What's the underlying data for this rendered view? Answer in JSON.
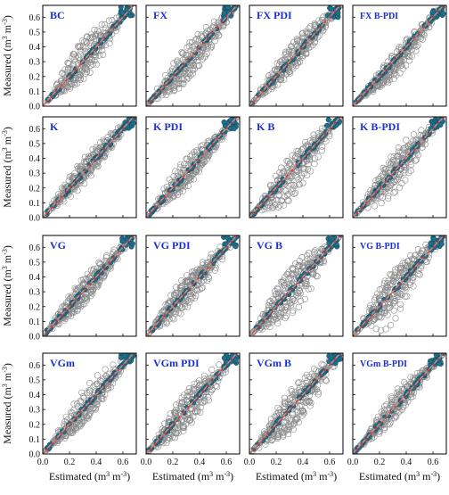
{
  "colors": {
    "open_marker": "#8a8a8a",
    "filled_marker": "#1f6f8b",
    "one_to_one_line": "#e8352b",
    "fit_line": "#a0a0a0",
    "panel_label": "#1a2fd6",
    "axis": "#000000"
  },
  "axis_text": {
    "ylabel_main": "Measured",
    "ylabel_unit_a": "(m",
    "ylabel_unit_b": " m",
    "ylabel_unit_c": ")",
    "ylabel_sup": "3",
    "ylabel_sup2": "-3",
    "xlabel_main": "Estimated",
    "xlabel_unit_a": "(m",
    "xlabel_unit_b": " m",
    "xlabel_unit_c": ")",
    "xlabel_sup": "3",
    "xlabel_sup2": "-3"
  },
  "chart_data": {
    "type": "scatter",
    "x_ticks": [
      "0.0",
      "0.2",
      "0.4",
      "0.6"
    ],
    "y_ticks": [
      "0.0",
      "0.1",
      "0.2",
      "0.3",
      "0.4",
      "0.5",
      "0.6"
    ],
    "xlim": [
      0,
      0.7
    ],
    "ylim": [
      0,
      0.68
    ],
    "grid": false,
    "panels": [
      {
        "label": "BC",
        "spread": 0.11,
        "bias": 0.02
      },
      {
        "label": "FX",
        "spread": 0.1,
        "bias": -0.03
      },
      {
        "label": "FX PDI",
        "spread": 0.09,
        "bias": 0.0
      },
      {
        "label": "FX B-PDI",
        "spread": 0.1,
        "bias": -0.04
      },
      {
        "label": "K",
        "spread": 0.08,
        "bias": 0.0
      },
      {
        "label": "K PDI",
        "spread": 0.09,
        "bias": -0.01
      },
      {
        "label": "K B",
        "spread": 0.13,
        "bias": -0.05
      },
      {
        "label": "K B-PDI",
        "spread": 0.13,
        "bias": -0.03
      },
      {
        "label": "VG",
        "spread": 0.1,
        "bias": 0.01
      },
      {
        "label": "VG PDI",
        "spread": 0.11,
        "bias": -0.02
      },
      {
        "label": "VG B",
        "spread": 0.16,
        "bias": 0.0
      },
      {
        "label": "VG B-PDI",
        "spread": 0.15,
        "bias": -0.04
      },
      {
        "label": "VGm",
        "spread": 0.1,
        "bias": 0.01
      },
      {
        "label": "VGm PDI",
        "spread": 0.12,
        "bias": -0.03
      },
      {
        "label": "VGm B",
        "spread": 0.15,
        "bias": -0.03
      },
      {
        "label": "VGm B-PDI",
        "spread": 0.1,
        "bias": -0.01
      }
    ]
  }
}
